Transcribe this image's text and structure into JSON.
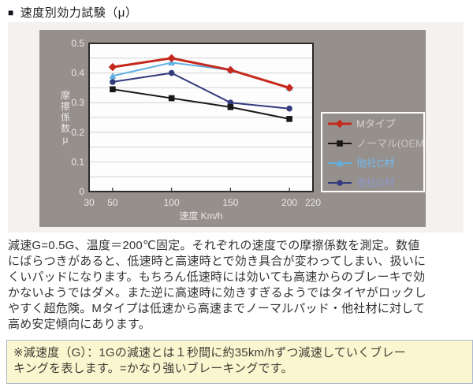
{
  "header": {
    "bullet": "■",
    "title": "速度別効力試験（μ）"
  },
  "chart_data": {
    "type": "line",
    "title": "",
    "xlabel": "速度 Km/h",
    "ylabel": "摩擦係数μ",
    "xlim": [
      30,
      220
    ],
    "ylim": [
      0,
      0.5
    ],
    "xticks": [
      30,
      50,
      100,
      150,
      200,
      220
    ],
    "xtick_marks": [
      50,
      100,
      150,
      200
    ],
    "yticks": [
      0,
      0.1,
      0.2,
      0.3,
      0.4,
      0.5
    ],
    "grid_step": 0.05,
    "grid": "horizontal-only",
    "legend_position": "right",
    "x": [
      50,
      100,
      150,
      200
    ],
    "series": [
      {
        "name": "Mタイプ",
        "color": "#c5281c",
        "label_color": "#d9d2cf",
        "marker": "diamond",
        "line_width": 3,
        "values": [
          0.42,
          0.45,
          0.41,
          0.35
        ]
      },
      {
        "name": "ノーマル(OEM)",
        "color": "#1a1817",
        "label_color": "#c9c6c4",
        "marker": "square",
        "line_width": 2,
        "values": [
          0.345,
          0.315,
          0.285,
          0.245
        ]
      },
      {
        "name": "他社C材",
        "color": "#5fb0e2",
        "label_color": "#72b9ea",
        "marker": "triangle",
        "line_width": 2,
        "values": [
          0.39,
          0.435,
          0.41,
          0.35
        ]
      },
      {
        "name": "他社D材",
        "color": "#333b7d",
        "label_color": "#8b99cb",
        "marker": "circle",
        "line_width": 2,
        "values": [
          0.37,
          0.4,
          0.3,
          0.28
        ]
      }
    ],
    "colors": {
      "panel_bg": "#f4f2f1",
      "chart_bg": "#96908d",
      "plot_bg": "#fdfdfd",
      "plot_border": "#2b2b2b",
      "grid_line": "#d2d2d2",
      "axis_text": "#e9e7e5",
      "legend_border": "#ffffff"
    }
  },
  "description": {
    "lines": [
      "減速G=0.5G、温度＝200℃固定。それぞれの速度での摩擦係数を測定。数値",
      "にばらつきがあると、低速時と高速時とで効き具合が変わってしまい、扱いに",
      "くいパッドになります。もちろん低速時には効いても高速からのブレーキで効",
      "かないようではダメ。また逆に高速時に効きすぎるようではタイヤがロックし",
      "やすく超危険。Mタイプは低速から高速までノーマルパッド・他社材に対して",
      "高め安定傾向にあります。"
    ]
  },
  "note": {
    "lines": [
      "※減速度（G）：1Gの減速とは１秒間に約35km/hずつ減速していくブレー",
      "キングを表します。=かなり強いブレーキングです。"
    ]
  }
}
